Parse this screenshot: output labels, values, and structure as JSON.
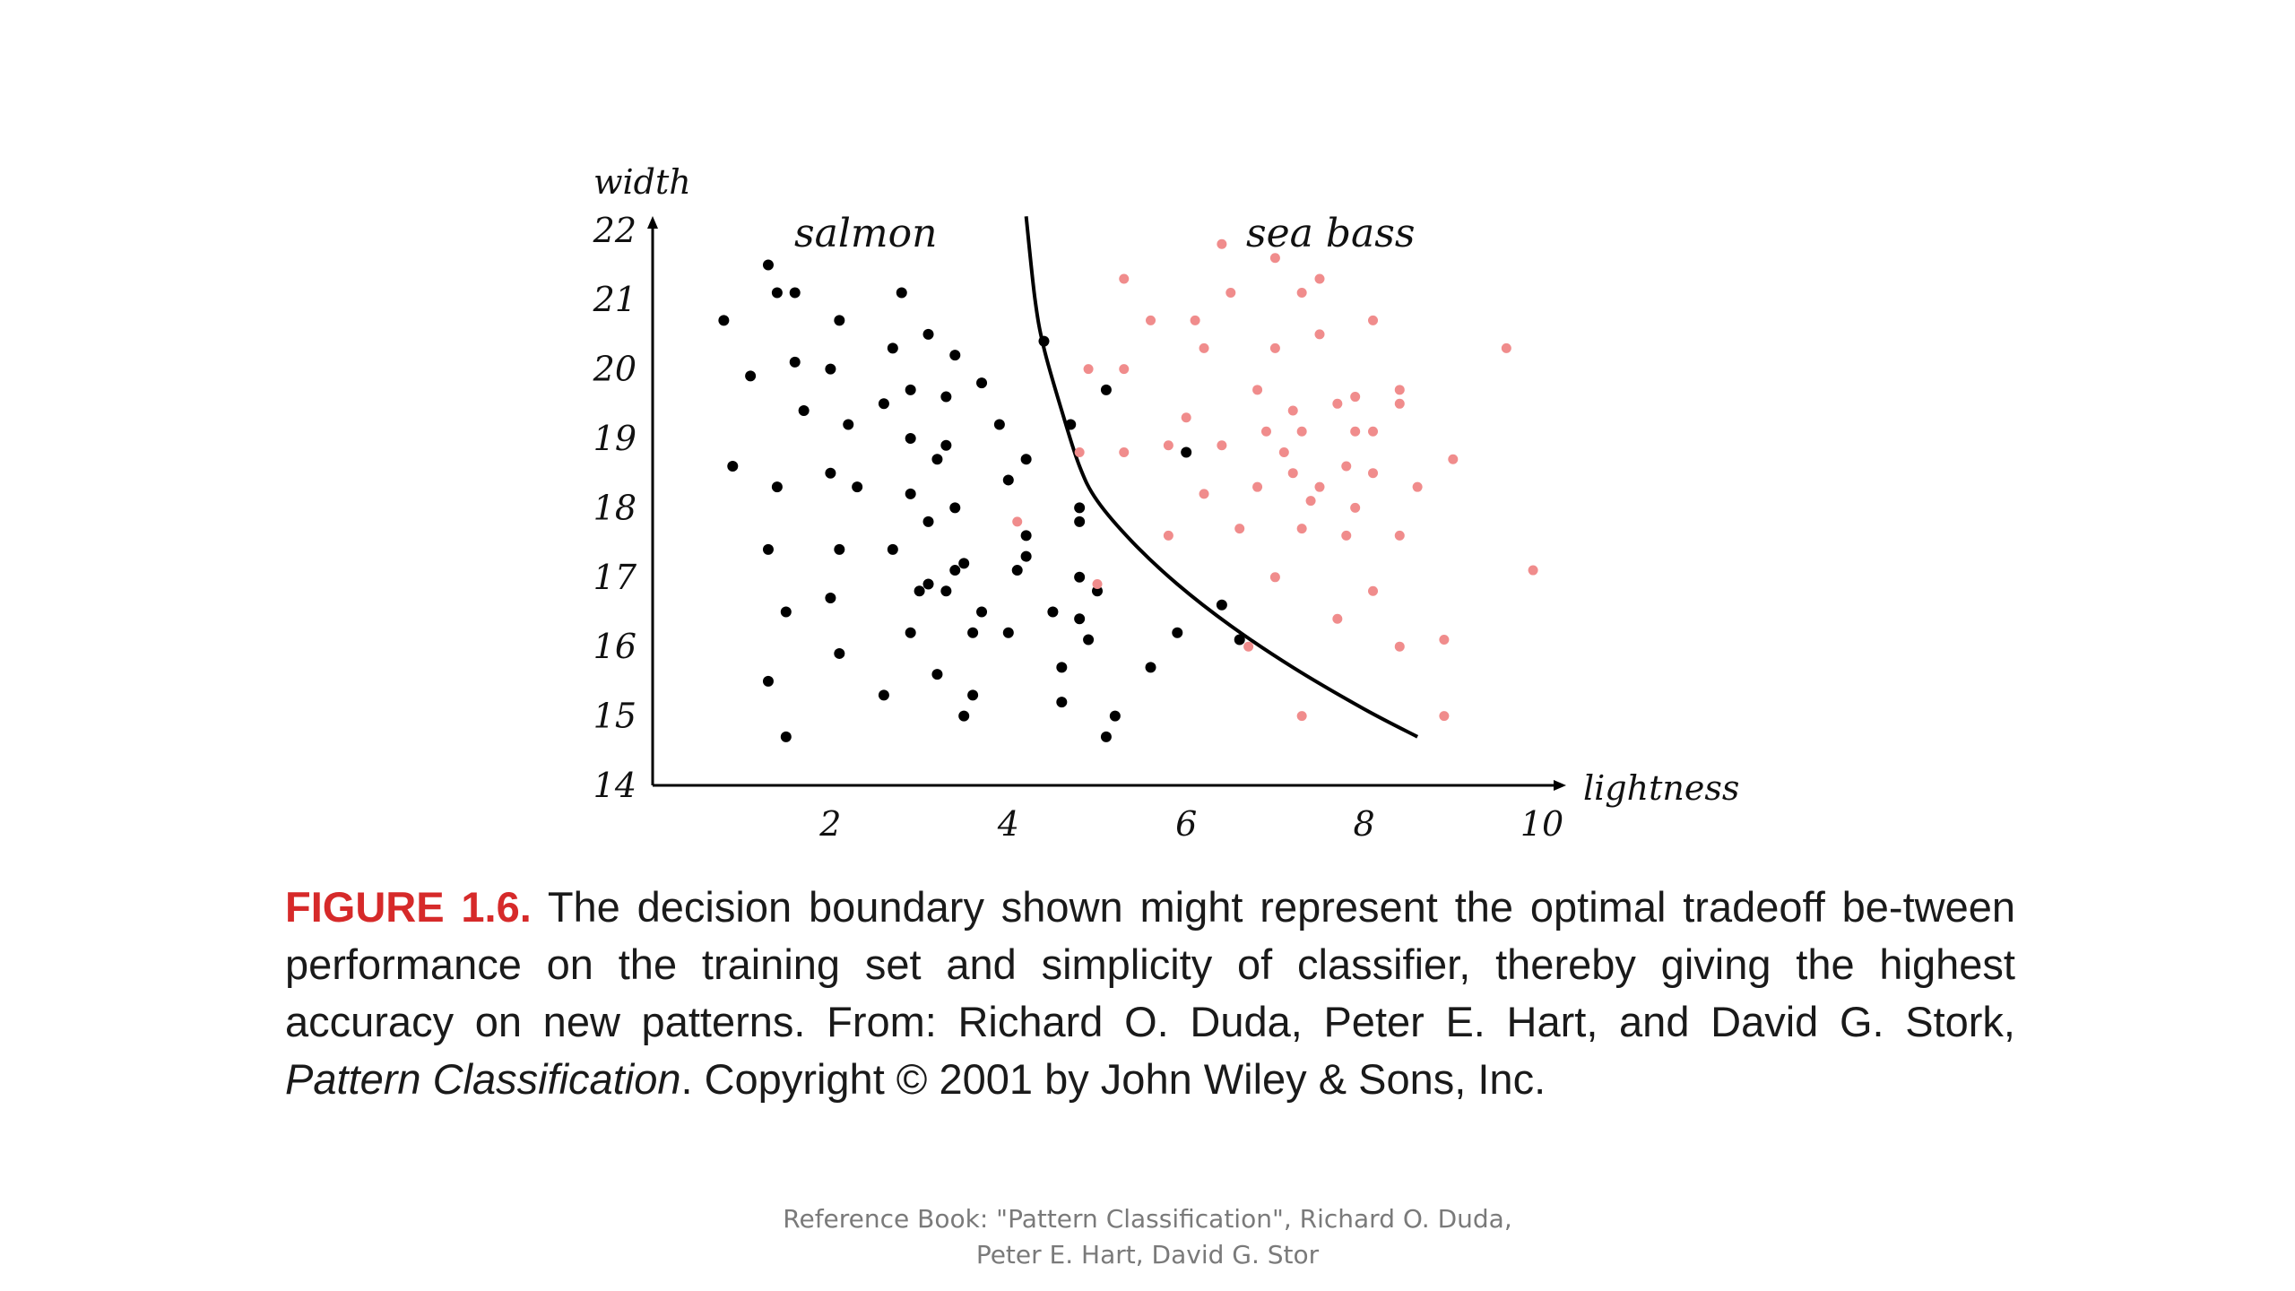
{
  "chart_data": {
    "type": "scatter",
    "title": "",
    "xlabel": "lightness",
    "ylabel": "width",
    "xlim": [
      0,
      10
    ],
    "ylim": [
      14,
      22
    ],
    "xticks": [
      "2",
      "4",
      "6",
      "8",
      "10"
    ],
    "yticks": [
      "14",
      "15",
      "16",
      "17",
      "18",
      "19",
      "20",
      "21",
      "22"
    ],
    "grid": false,
    "series": [
      {
        "name": "salmon",
        "color": "#000000",
        "points": [
          [
            0.8,
            20.7
          ],
          [
            1.1,
            19.9
          ],
          [
            0.9,
            18.6
          ],
          [
            1.3,
            21.5
          ],
          [
            1.4,
            21.1
          ],
          [
            1.6,
            21.1
          ],
          [
            1.6,
            20.1
          ],
          [
            1.7,
            19.4
          ],
          [
            1.4,
            18.3
          ],
          [
            1.3,
            17.4
          ],
          [
            1.5,
            16.5
          ],
          [
            1.3,
            15.5
          ],
          [
            1.5,
            14.7
          ],
          [
            2.0,
            20.0
          ],
          [
            2.1,
            20.7
          ],
          [
            2.2,
            19.2
          ],
          [
            2.0,
            18.5
          ],
          [
            2.3,
            18.3
          ],
          [
            2.1,
            17.4
          ],
          [
            2.0,
            16.7
          ],
          [
            2.1,
            15.9
          ],
          [
            2.6,
            19.5
          ],
          [
            2.7,
            20.3
          ],
          [
            2.8,
            21.1
          ],
          [
            2.9,
            19.7
          ],
          [
            2.9,
            19.0
          ],
          [
            2.9,
            18.2
          ],
          [
            2.7,
            17.4
          ],
          [
            2.9,
            16.2
          ],
          [
            2.6,
            15.3
          ],
          [
            3.1,
            20.5
          ],
          [
            3.3,
            19.6
          ],
          [
            3.4,
            20.2
          ],
          [
            3.3,
            18.9
          ],
          [
            3.2,
            18.7
          ],
          [
            3.1,
            17.8
          ],
          [
            3.4,
            18.0
          ],
          [
            3.0,
            16.8
          ],
          [
            3.1,
            16.9
          ],
          [
            3.3,
            16.8
          ],
          [
            3.4,
            17.1
          ],
          [
            3.5,
            17.2
          ],
          [
            3.2,
            15.6
          ],
          [
            3.5,
            15.0
          ],
          [
            3.6,
            15.3
          ],
          [
            3.6,
            16.2
          ],
          [
            3.7,
            19.8
          ],
          [
            3.7,
            16.5
          ],
          [
            3.9,
            19.2
          ],
          [
            4.0,
            16.2
          ],
          [
            4.0,
            18.4
          ],
          [
            4.1,
            17.1
          ],
          [
            4.2,
            17.3
          ],
          [
            4.2,
            18.7
          ],
          [
            4.2,
            17.6
          ],
          [
            4.4,
            20.4
          ],
          [
            4.5,
            16.5
          ],
          [
            4.6,
            15.7
          ],
          [
            4.6,
            15.2
          ],
          [
            4.7,
            19.2
          ],
          [
            4.8,
            18.0
          ],
          [
            4.8,
            17.8
          ],
          [
            4.8,
            17.0
          ],
          [
            4.8,
            16.4
          ],
          [
            4.9,
            16.1
          ],
          [
            5.0,
            16.8
          ],
          [
            5.1,
            14.7
          ],
          [
            5.2,
            15.0
          ],
          [
            5.1,
            19.7
          ],
          [
            5.6,
            15.7
          ],
          [
            5.9,
            16.2
          ],
          [
            6.0,
            18.8
          ],
          [
            6.4,
            16.6
          ],
          [
            6.6,
            16.1
          ]
        ]
      },
      {
        "name": "sea bass",
        "color": "#f08c8c",
        "points": [
          [
            5.3,
            21.3
          ],
          [
            5.6,
            20.7
          ],
          [
            6.1,
            20.7
          ],
          [
            6.2,
            20.3
          ],
          [
            6.5,
            21.1
          ],
          [
            6.4,
            21.8
          ],
          [
            7.0,
            21.6
          ],
          [
            7.3,
            21.1
          ],
          [
            7.5,
            21.3
          ],
          [
            7.5,
            20.5
          ],
          [
            8.1,
            20.7
          ],
          [
            9.6,
            20.3
          ],
          [
            4.9,
            20.0
          ],
          [
            5.3,
            20.0
          ],
          [
            6.0,
            19.3
          ],
          [
            7.0,
            20.3
          ],
          [
            6.8,
            19.7
          ],
          [
            7.2,
            19.4
          ],
          [
            7.7,
            19.5
          ],
          [
            7.9,
            19.6
          ],
          [
            8.4,
            19.7
          ],
          [
            8.4,
            19.5
          ],
          [
            5.8,
            18.9
          ],
          [
            5.3,
            18.8
          ],
          [
            4.8,
            18.8
          ],
          [
            6.4,
            18.9
          ],
          [
            6.9,
            19.1
          ],
          [
            7.3,
            19.1
          ],
          [
            7.1,
            18.8
          ],
          [
            7.9,
            19.1
          ],
          [
            8.1,
            19.1
          ],
          [
            9.0,
            18.7
          ],
          [
            6.2,
            18.2
          ],
          [
            6.8,
            18.3
          ],
          [
            7.2,
            18.5
          ],
          [
            7.5,
            18.3
          ],
          [
            7.8,
            18.6
          ],
          [
            8.1,
            18.5
          ],
          [
            8.6,
            18.3
          ],
          [
            4.1,
            17.8
          ],
          [
            5.8,
            17.6
          ],
          [
            6.6,
            17.7
          ],
          [
            7.3,
            17.7
          ],
          [
            7.4,
            18.1
          ],
          [
            7.8,
            17.6
          ],
          [
            7.9,
            18.0
          ],
          [
            8.4,
            17.6
          ],
          [
            5.0,
            16.9
          ],
          [
            7.0,
            17.0
          ],
          [
            8.1,
            16.8
          ],
          [
            9.9,
            17.1
          ],
          [
            6.7,
            16.0
          ],
          [
            7.7,
            16.4
          ],
          [
            8.4,
            16.0
          ],
          [
            8.9,
            16.1
          ],
          [
            7.3,
            15.0
          ],
          [
            8.9,
            15.0
          ]
        ]
      }
    ],
    "boundary": [
      [
        4.2,
        22.2
      ],
      [
        4.3,
        21.0
      ],
      [
        4.4,
        20.3
      ],
      [
        4.6,
        19.4
      ],
      [
        4.8,
        18.6
      ],
      [
        5.0,
        18.1
      ],
      [
        5.4,
        17.5
      ],
      [
        5.9,
        16.9
      ],
      [
        6.5,
        16.3
      ],
      [
        7.2,
        15.7
      ],
      [
        8.0,
        15.1
      ],
      [
        8.6,
        14.7
      ]
    ],
    "class_labels": [
      {
        "text": "salmon",
        "color": "#111111"
      },
      {
        "text": "sea bass",
        "color": "#e0303c"
      }
    ]
  },
  "caption": {
    "figure_label": "FIGURE 1.6.",
    "text_before": " The decision boundary shown might represent the optimal tradeoff be-tween performance on the training set and simplicity of classifier, thereby giving the highest accuracy on new patterns. From: Richard O. Duda, Peter E. Hart, and David G. Stork, ",
    "book_title": "Pattern Classification",
    "text_after": ". Copyright © 2001 by John Wiley & Sons, Inc."
  },
  "reference": {
    "line1": "Reference Book: \"Pattern Classification\", Richard O. Duda,",
    "line2": "Peter E. Hart, David G. Stor"
  }
}
